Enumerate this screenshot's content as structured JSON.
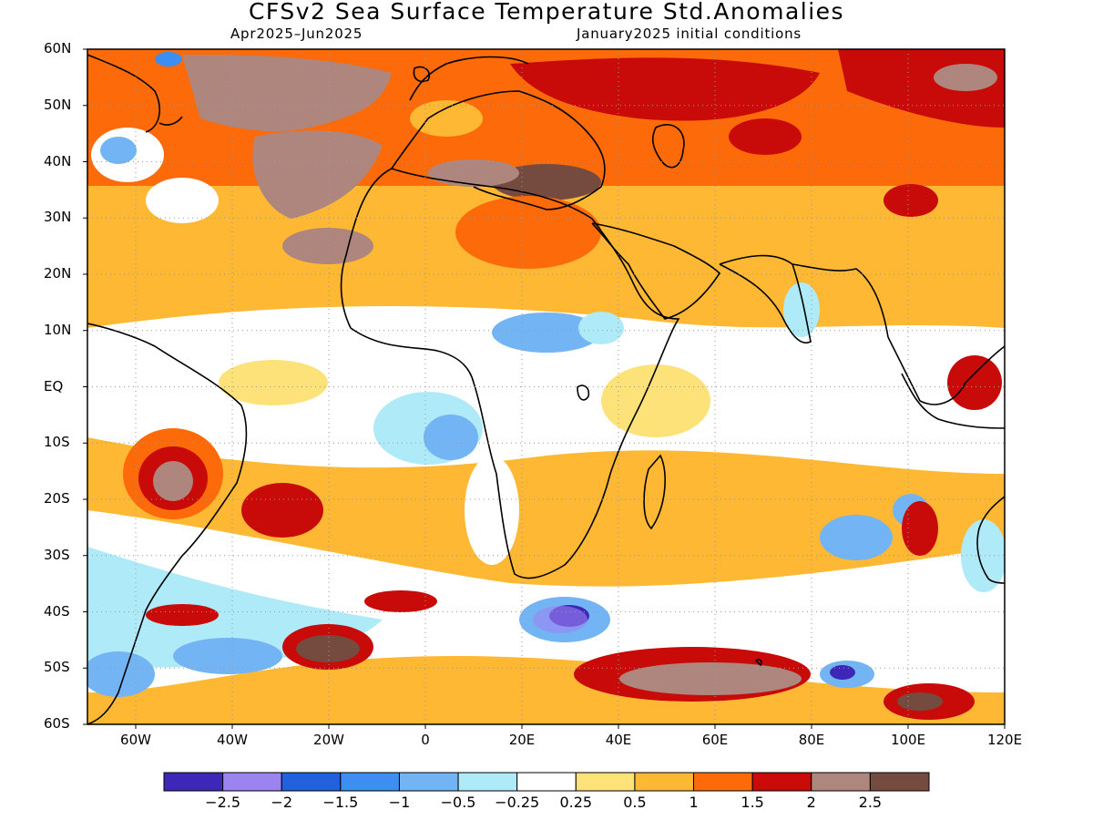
{
  "title": "CFSv2 Sea Surface Temperature Std.Anomalies",
  "subtitle_left": "Apr2025–Jun2025",
  "subtitle_right": "January2025 initial conditions",
  "y_ticks": [
    "60N",
    "50N",
    "40N",
    "30N",
    "20N",
    "10N",
    "EQ",
    "10S",
    "20S",
    "30S",
    "40S",
    "50S",
    "60S"
  ],
  "x_ticks": [
    "60W",
    "40W",
    "20W",
    "0",
    "20E",
    "40E",
    "60E",
    "80E",
    "100E",
    "120E"
  ],
  "colorbar": {
    "colors": [
      "#3d27b9",
      "#9c84f0",
      "#2260dc",
      "#3c8ef0",
      "#72b4f4",
      "#aeeaf8",
      "#ffffff",
      "#fde27a",
      "#ffb833",
      "#fd6a09",
      "#c80a08",
      "#ae867e",
      "#754b40"
    ],
    "labels": [
      "−2.5",
      "−2",
      "−1.5",
      "−1",
      "−0.5",
      "−0.25",
      "0.25",
      "0.5",
      "1",
      "1.5",
      "2",
      "2.5"
    ]
  }
}
